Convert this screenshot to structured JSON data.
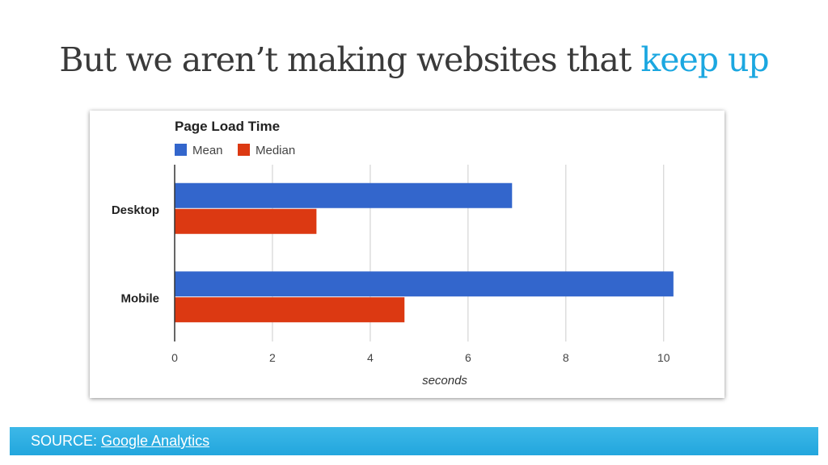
{
  "slide": {
    "title_main": "But we aren’t making websites that ",
    "title_highlight": "keep up"
  },
  "source": {
    "prefix": "SOURCE: ",
    "link_text": "Google Analytics"
  },
  "colors": {
    "accent": "#1ba7e0",
    "mean": "#3366cc",
    "median": "#dc3912"
  },
  "chart_data": {
    "type": "bar",
    "orientation": "horizontal",
    "title": "Page Load Time",
    "categories": [
      "Desktop",
      "Mobile"
    ],
    "series": [
      {
        "name": "Mean",
        "color": "#3366cc",
        "values": [
          6.9,
          10.2
        ]
      },
      {
        "name": "Median",
        "color": "#dc3912",
        "values": [
          2.9,
          4.7
        ]
      }
    ],
    "xlabel": "seconds",
    "ylabel": "",
    "xlim": [
      0,
      10.5
    ],
    "xticks": [
      0,
      2,
      4,
      6,
      8,
      10
    ],
    "grid": true,
    "legend": "top-left"
  }
}
